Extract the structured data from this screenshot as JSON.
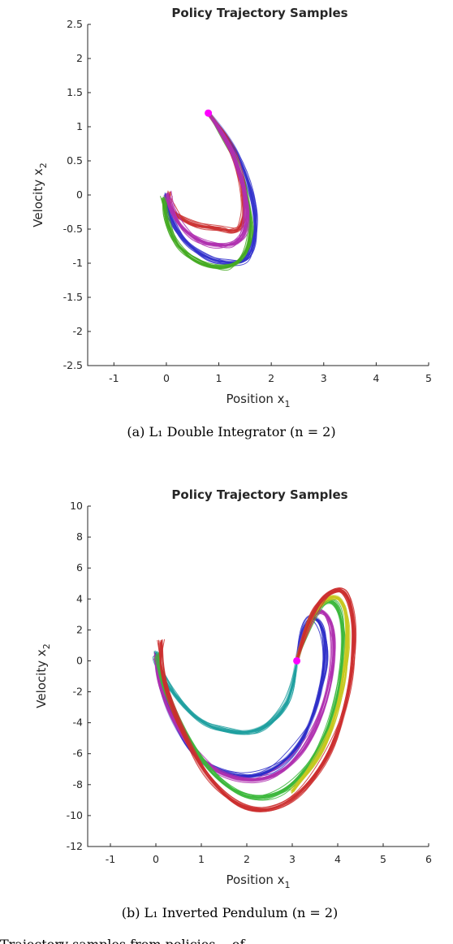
{
  "chart_data": [
    {
      "type": "line",
      "title": "Policy Trajectory Samples",
      "xlabel": "Position x",
      "xlabel_sub": "1",
      "ylabel": "Velocity x",
      "ylabel_sub": "2",
      "xlim": [
        -1.5,
        5
      ],
      "ylim": [
        -2.5,
        2.5
      ],
      "xticks": [
        -1,
        0,
        1,
        2,
        3,
        4,
        5
      ],
      "xtick_labels": [
        "-1",
        "0",
        "1",
        "2",
        "3",
        "4",
        "5"
      ],
      "yticks": [
        2.5,
        2,
        1.5,
        1,
        0.5,
        0,
        -0.5,
        -1,
        -1.5,
        -2,
        -2.5
      ],
      "ytick_labels": [
        "2.5",
        "2",
        "1.5",
        "1",
        "0.5",
        "0",
        "-0.5",
        "-1",
        "-1.5",
        "-2",
        "-2.5"
      ],
      "grid": false,
      "start_point": {
        "x": 0.8,
        "y": 1.2,
        "color": "#ff00ff"
      },
      "series": [
        {
          "color": "#3333cc",
          "x": [
            0.8,
            1.2,
            1.5,
            1.7,
            1.7,
            1.55,
            1.25,
            0.8,
            0.35,
            0.05,
            0.0
          ],
          "y": [
            1.2,
            0.85,
            0.35,
            -0.2,
            -0.65,
            -0.95,
            -1.0,
            -0.95,
            -0.7,
            -0.3,
            0.0
          ]
        },
        {
          "color": "#44aa22",
          "x": [
            0.8,
            1.15,
            1.45,
            1.6,
            1.6,
            1.4,
            1.05,
            0.6,
            0.2,
            0.0,
            -0.05
          ],
          "y": [
            1.2,
            0.82,
            0.3,
            -0.25,
            -0.7,
            -1.0,
            -1.08,
            -1.0,
            -0.75,
            -0.35,
            -0.05
          ]
        },
        {
          "color": "#cc3333",
          "x": [
            0.8,
            1.15,
            1.4,
            1.5,
            1.45,
            1.3,
            1.0,
            0.6,
            0.25,
            0.05,
            0.05
          ],
          "y": [
            1.2,
            0.85,
            0.35,
            -0.15,
            -0.45,
            -0.55,
            -0.5,
            -0.45,
            -0.35,
            -0.15,
            0.02
          ]
        },
        {
          "color": "#b030b0",
          "x": [
            0.8,
            1.15,
            1.42,
            1.55,
            1.52,
            1.35,
            1.05,
            0.65,
            0.3,
            0.08,
            0.02
          ],
          "y": [
            1.2,
            0.83,
            0.32,
            -0.2,
            -0.55,
            -0.72,
            -0.75,
            -0.7,
            -0.5,
            -0.22,
            0.0
          ]
        }
      ]
    },
    {
      "type": "line",
      "title": "Policy Trajectory Samples",
      "xlabel": "Position x",
      "xlabel_sub": "1",
      "ylabel": "Velocity x",
      "ylabel_sub": "2",
      "xlim": [
        -1.5,
        6
      ],
      "ylim": [
        -12,
        10
      ],
      "xticks": [
        -1,
        0,
        1,
        2,
        3,
        4,
        5,
        6
      ],
      "xtick_labels": [
        "-1",
        "0",
        "1",
        "2",
        "3",
        "4",
        "5",
        "6"
      ],
      "yticks": [
        10,
        8,
        6,
        4,
        2,
        0,
        -2,
        -4,
        -6,
        -8,
        -10,
        -12
      ],
      "ytick_labels": [
        "10",
        "8",
        "6",
        "4",
        "2",
        "0",
        "-2",
        "-4",
        "-6",
        "-8",
        "-10",
        "-12"
      ],
      "grid": false,
      "start_point": {
        "x": 3.1,
        "y": 0.0,
        "color": "#ff00ff"
      },
      "series": [
        {
          "color": "#20a0a0",
          "x": [
            3.1,
            3.0,
            2.7,
            2.2,
            1.6,
            1.0,
            0.5,
            0.15,
            0.0,
            0.02
          ],
          "y": [
            0.0,
            -2.0,
            -3.6,
            -4.6,
            -4.6,
            -4.0,
            -2.6,
            -1.0,
            0.0,
            0.5
          ]
        },
        {
          "color": "#2e2ec8",
          "x": [
            3.1,
            3.2,
            3.45,
            3.7,
            3.75,
            3.55,
            3.15,
            2.5,
            1.7,
            0.9,
            0.3,
            0.05,
            0.0
          ],
          "y": [
            0.0,
            1.8,
            3.0,
            2.2,
            0.0,
            -3.0,
            -5.6,
            -7.3,
            -7.6,
            -6.4,
            -3.6,
            -1.0,
            0.3
          ]
        },
        {
          "color": "#b030b0",
          "x": [
            3.1,
            3.25,
            3.55,
            3.85,
            3.95,
            3.75,
            3.3,
            2.6,
            1.8,
            1.0,
            0.35,
            0.05,
            0.0
          ],
          "y": [
            0.0,
            2.0,
            3.4,
            2.8,
            0.5,
            -2.8,
            -5.8,
            -7.6,
            -7.8,
            -6.6,
            -3.8,
            -1.2,
            0.3
          ]
        },
        {
          "color": "#3cb83c",
          "x": [
            3.1,
            3.3,
            3.65,
            4.0,
            4.15,
            4.0,
            3.6,
            2.9,
            2.1,
            1.3,
            0.6,
            0.15,
            0.05
          ],
          "y": [
            0.0,
            2.2,
            3.8,
            3.8,
            1.5,
            -2.5,
            -6.0,
            -8.5,
            -9.0,
            -7.6,
            -4.6,
            -1.6,
            0.4
          ]
        },
        {
          "color": "#c8c820",
          "x": [
            3.1,
            3.32,
            3.7,
            4.1,
            4.25,
            4.1,
            3.7,
            3.0
          ],
          "y": [
            0.0,
            2.4,
            4.1,
            4.2,
            1.8,
            -2.2,
            -5.8,
            -8.4
          ]
        },
        {
          "color": "#cc2e2e",
          "x": [
            3.1,
            3.35,
            3.75,
            4.2,
            4.4,
            4.25,
            3.8,
            3.0,
            2.1,
            1.2,
            0.5,
            0.12,
            0.1
          ],
          "y": [
            0.0,
            2.6,
            4.4,
            4.7,
            2.0,
            -2.4,
            -6.4,
            -9.2,
            -9.9,
            -8.0,
            -4.2,
            -0.8,
            1.2
          ]
        }
      ]
    }
  ],
  "captions": {
    "a": "(a) L₁ Double Integrator (n = 2)",
    "b": "(b) L₁ Inverted Pendulum (n = 2)"
  },
  "cut_text": "Trajectory samples from policies... of"
}
